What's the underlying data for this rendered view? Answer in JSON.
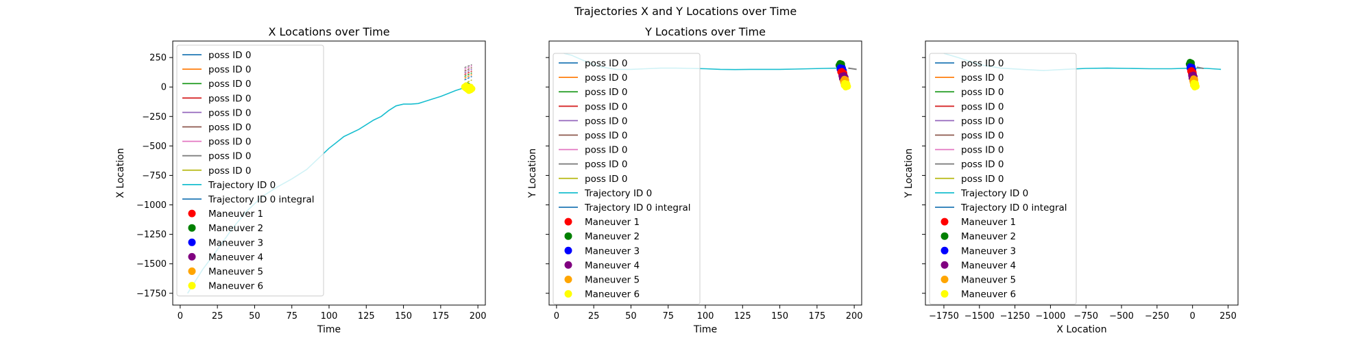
{
  "suptitle": "Trajectories X and Y Locations over Time",
  "legend_labels": [
    "poss ID 0",
    "poss ID 0",
    "poss ID 0",
    "poss ID 0",
    "poss ID 0",
    "poss ID 0",
    "poss ID 0",
    "poss ID 0",
    "poss ID 0",
    "Trajectory ID 0",
    "Trajectory ID 0 integral",
    "Maneuver 1",
    "Maneuver 2",
    "Maneuver 3",
    "Maneuver 4",
    "Maneuver 5",
    "Maneuver 6"
  ],
  "legend_colors": [
    "#1f77b4",
    "#ff7f0e",
    "#2ca02c",
    "#d62728",
    "#9467bd",
    "#8c564b",
    "#e377c2",
    "#7f7f7f",
    "#bcbd22",
    "#17becf",
    "#1f77b4",
    "#ff0000",
    "#008000",
    "#0000ff",
    "#800080",
    "#ffa500",
    "#ffff00"
  ],
  "chart_data": [
    {
      "type": "line",
      "title": "X Locations over Time",
      "xlabel": "Time",
      "ylabel": "X Location",
      "xlim": [
        -5,
        205
      ],
      "ylim": [
        -1850,
        390
      ],
      "xticks": [
        0,
        25,
        50,
        75,
        100,
        125,
        150,
        175,
        200
      ],
      "yticks": [
        250,
        0,
        -250,
        -500,
        -750,
        -1000,
        -1250,
        -1500,
        -1750
      ],
      "tick_labels_y": [
        "250",
        "0",
        "−250",
        "−500",
        "−750",
        "−1000",
        "−1250",
        "−1500",
        "−1750"
      ],
      "legend_location": "upper left",
      "trajectory": {
        "x": [
          5,
          15,
          25,
          35,
          45,
          55,
          65,
          75,
          85,
          95,
          100,
          105,
          110,
          115,
          120,
          125,
          130,
          135,
          140,
          145,
          150,
          155,
          160,
          165,
          170,
          175,
          180,
          185,
          190,
          195
        ],
        "y": [
          -1750,
          -1550,
          -1380,
          -1200,
          -1050,
          -930,
          -850,
          -780,
          -700,
          -580,
          -520,
          -470,
          -420,
          -390,
          -360,
          -320,
          -280,
          -250,
          -200,
          -160,
          -145,
          -145,
          -140,
          -120,
          -100,
          -80,
          -55,
          -30,
          -10,
          0
        ]
      },
      "poss_lines": [
        [
          191,
          60,
          196,
          90
        ],
        [
          191,
          75,
          196,
          105
        ],
        [
          191,
          90,
          196,
          120
        ],
        [
          191,
          105,
          196,
          135
        ],
        [
          191,
          120,
          196,
          150
        ],
        [
          191,
          135,
          196,
          165
        ],
        [
          191,
          150,
          196,
          180
        ],
        [
          191,
          165,
          196,
          190
        ],
        [
          191,
          30,
          196,
          60
        ]
      ],
      "maneuvers": [
        {
          "name": "Maneuver 1",
          "color": "#ff0000",
          "x": [
            192,
            193
          ],
          "y": [
            5,
            -5
          ]
        },
        {
          "name": "Maneuver 2",
          "color": "#008000",
          "x": [
            193,
            194
          ],
          "y": [
            10,
            0
          ]
        },
        {
          "name": "Maneuver 3",
          "color": "#0000ff",
          "x": [
            192,
            194
          ],
          "y": [
            0,
            -10
          ]
        },
        {
          "name": "Maneuver 4",
          "color": "#800080",
          "x": [
            193
          ],
          "y": [
            -5
          ]
        },
        {
          "name": "Maneuver 5",
          "color": "#ffa500",
          "x": [
            192,
            194
          ],
          "y": [
            -5,
            -10
          ]
        },
        {
          "name": "Maneuver 6",
          "color": "#ffff00",
          "x": [
            191,
            192,
            193,
            194,
            195,
            196,
            193,
            195,
            192,
            194
          ],
          "y": [
            0,
            -10,
            5,
            -5,
            0,
            -15,
            -20,
            -25,
            10,
            -30
          ]
        }
      ]
    },
    {
      "type": "line",
      "title": "Y Locations over Time",
      "xlabel": "Time",
      "ylabel": "Y Location",
      "xlim": [
        -5,
        205
      ],
      "ylim": [
        -1850,
        390
      ],
      "xticks": [
        0,
        25,
        50,
        75,
        100,
        125,
        150,
        175,
        200
      ],
      "legend_location": "upper left",
      "trajectory": {
        "x": [
          5,
          10,
          20,
          30,
          40,
          50,
          60,
          70,
          80,
          90,
          100,
          110,
          120,
          130,
          140,
          150,
          160,
          170,
          180,
          190
        ],
        "y": [
          285,
          270,
          215,
          170,
          150,
          150,
          155,
          160,
          160,
          158,
          155,
          150,
          148,
          150,
          150,
          150,
          152,
          155,
          158,
          160
        ]
      },
      "maneuver_cluster": {
        "x_range": [
          189,
          196
        ],
        "y_top": 200,
        "y_bottom": 0
      }
    },
    {
      "type": "line",
      "title": "",
      "xlabel": "X Location",
      "ylabel": "Y Location",
      "xlim": [
        -1880,
        320
      ],
      "ylim": [
        -1850,
        390
      ],
      "xticks": [
        -1750,
        -1500,
        -1250,
        -1000,
        -750,
        -500,
        -250,
        0,
        250
      ],
      "tick_labels_x": [
        "−1750",
        "−1500",
        "−1250",
        "−1000",
        "−750",
        "−500",
        "−250",
        "0",
        "250"
      ],
      "legend_location": "upper left",
      "trajectory": {
        "x": [
          -1750,
          -1650,
          -1500,
          -1350,
          -1200,
          -1050,
          -900,
          -750,
          -600,
          -450,
          -300,
          -150,
          0,
          100,
          200
        ],
        "y": [
          285,
          250,
          190,
          160,
          150,
          140,
          150,
          158,
          160,
          158,
          155,
          155,
          160,
          158,
          150
        ]
      },
      "maneuver_cluster": {
        "x_range": [
          -30,
          30
        ],
        "y_top": 210,
        "y_bottom": 0
      }
    }
  ]
}
